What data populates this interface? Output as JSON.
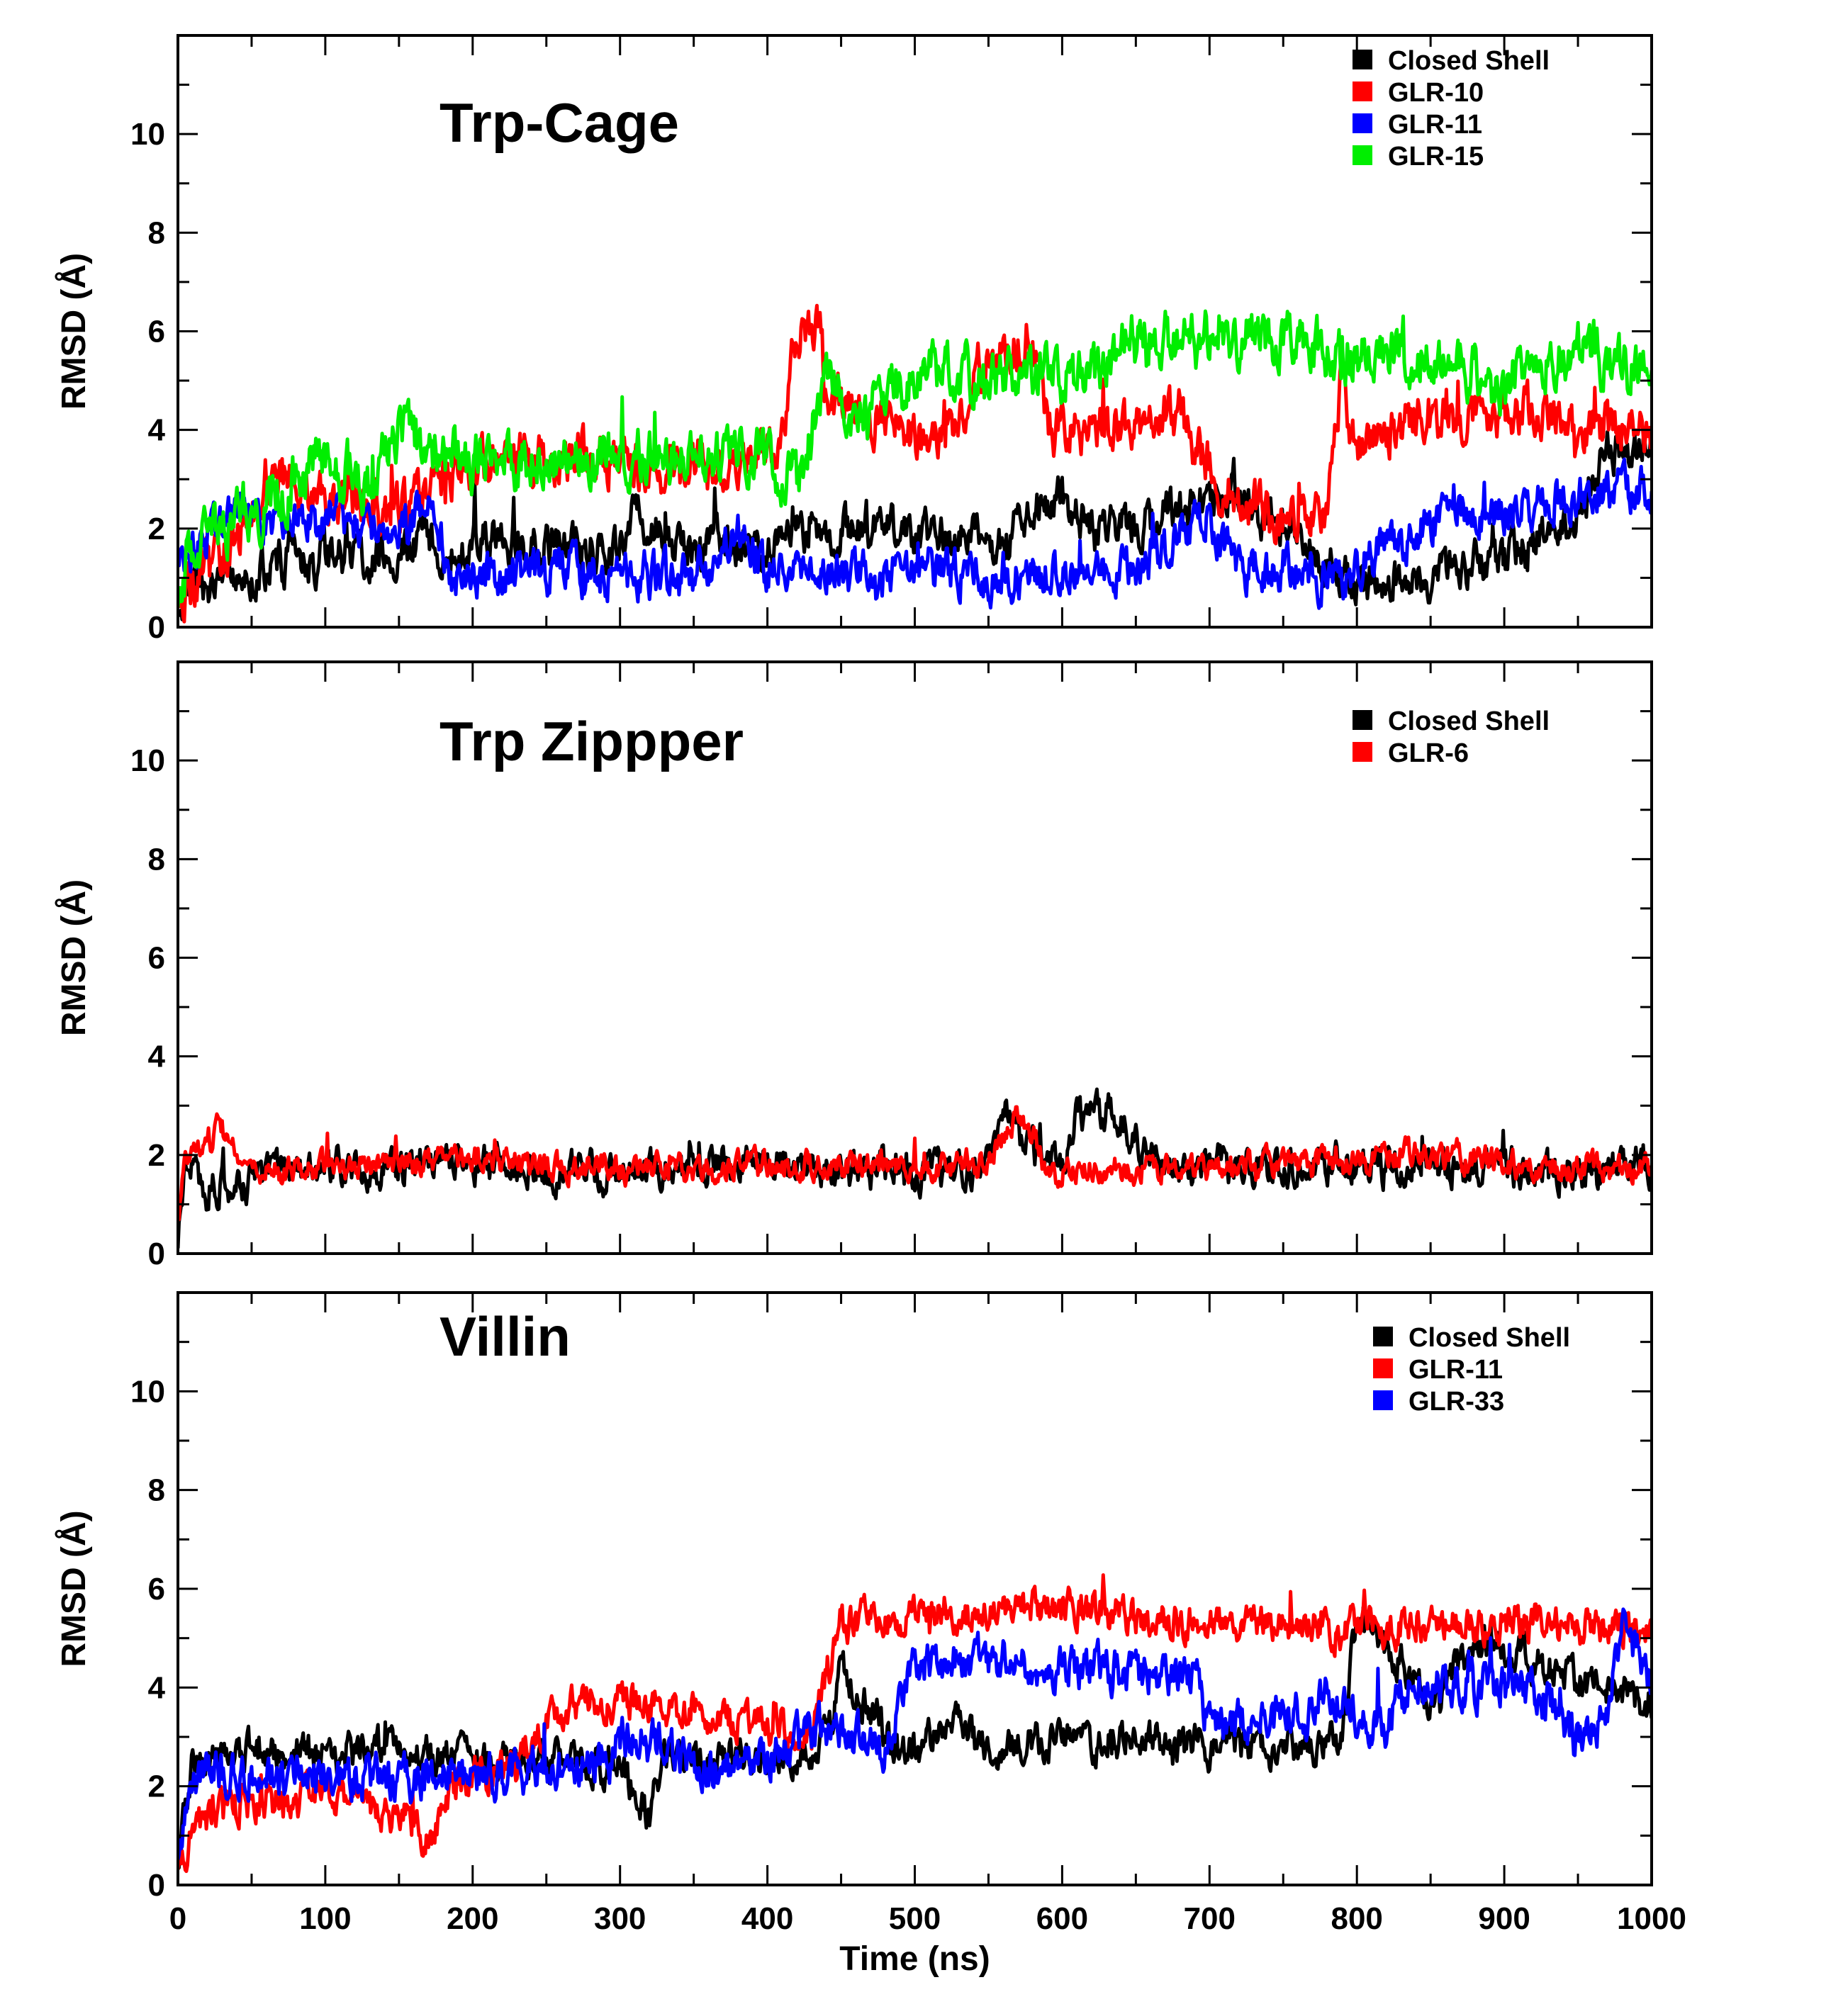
{
  "chart_data": {
    "type": "line",
    "shared_xlabel": "Time (ns)",
    "xlim": [
      0,
      1000
    ],
    "x_ticks": [
      0,
      100,
      200,
      300,
      400,
      500,
      600,
      700,
      800,
      900,
      1000
    ],
    "ylim": [
      0,
      12
    ],
    "y_ticks": [
      0,
      2,
      4,
      6,
      8,
      10
    ],
    "panels": [
      {
        "title": "Trp-Cage",
        "ylabel": "RMSD (Å)",
        "legend_position": "top-right",
        "series": [
          {
            "name": "Closed Shell",
            "color": "#000000",
            "noise": 0.35,
            "keypoints": [
              [
                0,
                0.2
              ],
              [
                5,
                0.8
              ],
              [
                50,
                0.9
              ],
              [
                60,
                1.3
              ],
              [
                100,
                1.4
              ],
              [
                150,
                1.5
              ],
              [
                175,
                1.8
              ],
              [
                180,
                1.2
              ],
              [
                200,
                1.9
              ],
              [
                250,
                1.6
              ],
              [
                300,
                1.6
              ],
              [
                310,
                2.5
              ],
              [
                330,
                1.7
              ],
              [
                380,
                1.6
              ],
              [
                400,
                1.5
              ],
              [
                420,
                1.9
              ],
              [
                440,
                1.9
              ],
              [
                480,
                2.1
              ],
              [
                500,
                1.8
              ],
              [
                560,
                1.7
              ],
              [
                580,
                2.4
              ],
              [
                600,
                2.6
              ],
              [
                620,
                1.9
              ],
              [
                650,
                2.1
              ],
              [
                690,
                2.4
              ],
              [
                710,
                2.8
              ],
              [
                740,
                2.2
              ],
              [
                780,
                1.3
              ],
              [
                800,
                0.9
              ],
              [
                900,
                1.3
              ],
              [
                920,
                1.8
              ],
              [
                950,
                2.3
              ],
              [
                970,
                3.5
              ],
              [
                1000,
                3.7
              ]
            ]
          },
          {
            "name": "GLR-10",
            "color": "#ff0000",
            "noise": 0.4,
            "keypoints": [
              [
                0,
                0.4
              ],
              [
                20,
                1.2
              ],
              [
                50,
                2.1
              ],
              [
                60,
                3.1
              ],
              [
                100,
                2.6
              ],
              [
                150,
                2.4
              ],
              [
                200,
                3.2
              ],
              [
                250,
                3.5
              ],
              [
                300,
                3.3
              ],
              [
                350,
                3.2
              ],
              [
                380,
                3.3
              ],
              [
                410,
                3.6
              ],
              [
                420,
                6.1
              ],
              [
                435,
                6.3
              ],
              [
                440,
                4.5
              ],
              [
                460,
                4.3
              ],
              [
                500,
                3.8
              ],
              [
                530,
                3.9
              ],
              [
                540,
                5.1
              ],
              [
                580,
                6.0
              ],
              [
                590,
                4.0
              ],
              [
                650,
                4.1
              ],
              [
                680,
                4.3
              ],
              [
                700,
                3.1
              ],
              [
                740,
                2.3
              ],
              [
                780,
                2.2
              ],
              [
                790,
                5.1
              ],
              [
                800,
                3.6
              ],
              [
                850,
                4.4
              ],
              [
                880,
                4.2
              ],
              [
                920,
                4.4
              ],
              [
                950,
                4.1
              ],
              [
                1000,
                4.0
              ]
            ]
          },
          {
            "name": "GLR-11",
            "color": "#0000ff",
            "noise": 0.35,
            "keypoints": [
              [
                0,
                1.3
              ],
              [
                40,
                2.4
              ],
              [
                60,
                2.1
              ],
              [
                100,
                2.3
              ],
              [
                150,
                1.9
              ],
              [
                175,
                2.6
              ],
              [
                185,
                1.0
              ],
              [
                250,
                1.1
              ],
              [
                300,
                1.1
              ],
              [
                350,
                1.0
              ],
              [
                380,
                2.1
              ],
              [
                400,
                1.2
              ],
              [
                450,
                1.1
              ],
              [
                500,
                1.2
              ],
              [
                550,
                1.0
              ],
              [
                600,
                1.2
              ],
              [
                650,
                1.2
              ],
              [
                700,
                2.2
              ],
              [
                720,
                1.2
              ],
              [
                790,
                1.0
              ],
              [
                850,
                2.2
              ],
              [
                900,
                2.4
              ],
              [
                950,
                2.6
              ],
              [
                1000,
                2.9
              ]
            ]
          },
          {
            "name": "GLR-15",
            "color": "#00ee00",
            "noise": 0.45,
            "keypoints": [
              [
                0,
                0.6
              ],
              [
                10,
                1.8
              ],
              [
                60,
                2.6
              ],
              [
                100,
                3.4
              ],
              [
                130,
                2.9
              ],
              [
                150,
                4.0
              ],
              [
                180,
                3.4
              ],
              [
                250,
                3.4
              ],
              [
                300,
                3.4
              ],
              [
                350,
                3.4
              ],
              [
                400,
                3.5
              ],
              [
                420,
                2.9
              ],
              [
                440,
                5.0
              ],
              [
                460,
                4.1
              ],
              [
                500,
                5.2
              ],
              [
                550,
                5.1
              ],
              [
                600,
                5.0
              ],
              [
                650,
                5.8
              ],
              [
                700,
                5.8
              ],
              [
                750,
                5.9
              ],
              [
                800,
                5.4
              ],
              [
                850,
                5.6
              ],
              [
                900,
                5.0
              ],
              [
                950,
                5.7
              ],
              [
                1000,
                5.1
              ]
            ]
          }
        ]
      },
      {
        "title": "Trp Zippper",
        "ylabel": "RMSD (Å)",
        "legend_position": "top-right",
        "series": [
          {
            "name": "Closed Shell",
            "color": "#000000",
            "noise": 0.3,
            "keypoints": [
              [
                0,
                0.3
              ],
              [
                5,
                1.8
              ],
              [
                20,
                1.3
              ],
              [
                100,
                1.8
              ],
              [
                200,
                1.8
              ],
              [
                300,
                1.6
              ],
              [
                400,
                1.8
              ],
              [
                500,
                1.6
              ],
              [
                550,
                1.7
              ],
              [
                565,
                3.0
              ],
              [
                575,
                2.1
              ],
              [
                600,
                1.7
              ],
              [
                610,
                2.8
              ],
              [
                640,
                2.9
              ],
              [
                660,
                1.8
              ],
              [
                700,
                1.8
              ],
              [
                800,
                1.8
              ],
              [
                900,
                1.6
              ],
              [
                1000,
                1.8
              ]
            ]
          },
          {
            "name": "GLR-6",
            "color": "#ff0000",
            "noise": 0.22,
            "keypoints": [
              [
                0,
                0.5
              ],
              [
                5,
                2.0
              ],
              [
                30,
                2.5
              ],
              [
                50,
                1.6
              ],
              [
                100,
                1.8
              ],
              [
                200,
                1.9
              ],
              [
                300,
                1.7
              ],
              [
                400,
                1.8
              ],
              [
                500,
                1.8
              ],
              [
                550,
                1.8
              ],
              [
                565,
                2.8
              ],
              [
                580,
                2.5
              ],
              [
                590,
                1.6
              ],
              [
                700,
                1.8
              ],
              [
                800,
                1.8
              ],
              [
                830,
                2.1
              ],
              [
                900,
                1.8
              ],
              [
                1000,
                1.7
              ]
            ]
          }
        ]
      },
      {
        "title": "Villin",
        "ylabel": "RMSD (Å)",
        "legend_position": "top-right",
        "series": [
          {
            "name": "Closed Shell",
            "color": "#000000",
            "noise": 0.3,
            "keypoints": [
              [
                0,
                0.5
              ],
              [
                10,
                2.5
              ],
              [
                50,
                2.8
              ],
              [
                100,
                2.6
              ],
              [
                150,
                2.8
              ],
              [
                200,
                2.5
              ],
              [
                220,
                2.6
              ],
              [
                250,
                2.5
              ],
              [
                300,
                2.3
              ],
              [
                320,
                1.4
              ],
              [
                330,
                2.6
              ],
              [
                400,
                2.5
              ],
              [
                440,
                2.9
              ],
              [
                450,
                4.4
              ],
              [
                470,
                3.6
              ],
              [
                490,
                2.6
              ],
              [
                530,
                3.2
              ],
              [
                560,
                2.8
              ],
              [
                600,
                2.9
              ],
              [
                650,
                3.0
              ],
              [
                700,
                2.8
              ],
              [
                750,
                2.7
              ],
              [
                790,
                3.0
              ],
              [
                800,
                5.5
              ],
              [
                820,
                4.8
              ],
              [
                850,
                3.8
              ],
              [
                890,
                5.0
              ],
              [
                920,
                4.5
              ],
              [
                950,
                4.1
              ],
              [
                1000,
                3.7
              ]
            ]
          },
          {
            "name": "GLR-11",
            "color": "#ff0000",
            "noise": 0.3,
            "keypoints": [
              [
                0,
                0.3
              ],
              [
                10,
                1.2
              ],
              [
                50,
                1.7
              ],
              [
                100,
                1.7
              ],
              [
                150,
                1.5
              ],
              [
                170,
                1.0
              ],
              [
                190,
                2.1
              ],
              [
                230,
                2.4
              ],
              [
                240,
                3.1
              ],
              [
                280,
                3.8
              ],
              [
                330,
                3.6
              ],
              [
                400,
                3.2
              ],
              [
                430,
                3.0
              ],
              [
                450,
                5.3
              ],
              [
                500,
                5.5
              ],
              [
                550,
                5.4
              ],
              [
                600,
                5.7
              ],
              [
                650,
                5.4
              ],
              [
                700,
                5.3
              ],
              [
                800,
                5.2
              ],
              [
                900,
                5.3
              ],
              [
                1000,
                5.2
              ]
            ]
          },
          {
            "name": "GLR-33",
            "color": "#0000ff",
            "noise": 0.35,
            "keypoints": [
              [
                0,
                0.5
              ],
              [
                10,
                2.2
              ],
              [
                50,
                2.2
              ],
              [
                100,
                2.2
              ],
              [
                200,
                2.2
              ],
              [
                280,
                2.4
              ],
              [
                300,
                3.0
              ],
              [
                340,
                2.7
              ],
              [
                350,
                2.2
              ],
              [
                420,
                2.8
              ],
              [
                440,
                3.2
              ],
              [
                480,
                2.7
              ],
              [
                500,
                4.4
              ],
              [
                550,
                4.6
              ],
              [
                600,
                4.4
              ],
              [
                650,
                4.3
              ],
              [
                690,
                4.2
              ],
              [
                700,
                3.3
              ],
              [
                750,
                3.3
              ],
              [
                780,
                3.8
              ],
              [
                820,
                3.3
              ],
              [
                840,
                4.2
              ],
              [
                880,
                4.1
              ],
              [
                930,
                3.8
              ],
              [
                950,
                2.8
              ],
              [
                970,
                3.4
              ],
              [
                980,
                5.2
              ],
              [
                1000,
                4.2
              ]
            ]
          }
        ]
      }
    ]
  }
}
